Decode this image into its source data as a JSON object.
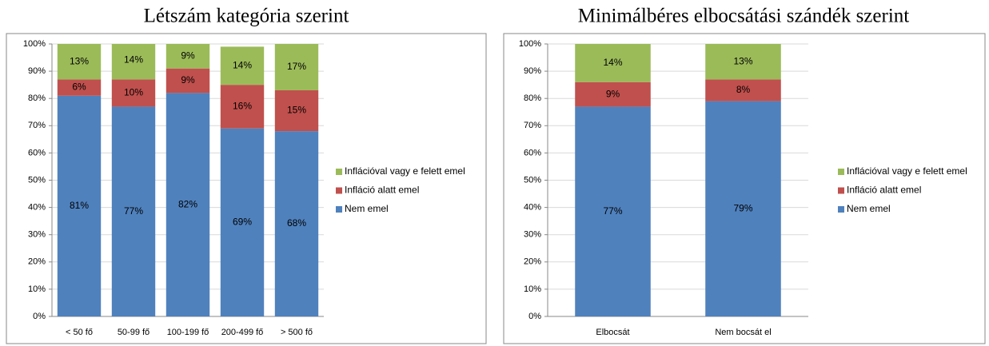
{
  "chart_data": [
    {
      "type": "bar",
      "stacked": true,
      "title": "Létszám kategória szerint",
      "categories": [
        "< 50 fő",
        "50-99 fő",
        "100-199 fő",
        "200-499 fő",
        "> 500 fő"
      ],
      "series": [
        {
          "name": "Nem emel",
          "color": "#4f81bd",
          "values": [
            81,
            77,
            82,
            69,
            68
          ],
          "value_labels": [
            "81%",
            "77%",
            "82%",
            "69%",
            "68%"
          ]
        },
        {
          "name": "Infláció alatt emel",
          "color": "#c0504d",
          "values": [
            6,
            10,
            9,
            16,
            15
          ],
          "value_labels": [
            "6%",
            "10%",
            "9%",
            "16%",
            "15%"
          ]
        },
        {
          "name": "Inflációval vagy e felett emel",
          "color": "#9bbb59",
          "values": [
            13,
            14,
            9,
            14,
            17
          ],
          "value_labels": [
            "13%",
            "14%",
            "9%",
            "14%",
            "17%"
          ]
        }
      ],
      "ylim": [
        0,
        100
      ],
      "yticks": [
        {
          "value": 0,
          "label": "0%"
        },
        {
          "value": 10,
          "label": "10%"
        },
        {
          "value": 20,
          "label": "20%"
        },
        {
          "value": 30,
          "label": "30%"
        },
        {
          "value": 40,
          "label": "40%"
        },
        {
          "value": 50,
          "label": "50%"
        },
        {
          "value": 60,
          "label": "60%"
        },
        {
          "value": 70,
          "label": "70%"
        },
        {
          "value": 80,
          "label": "80%"
        },
        {
          "value": 90,
          "label": "90%"
        },
        {
          "value": 100,
          "label": "100%"
        }
      ],
      "legend": "right"
    },
    {
      "type": "bar",
      "stacked": true,
      "title": "Minimálbéres elbocsátási szándék szerint",
      "categories": [
        "Elbocsát",
        "Nem bocsát el"
      ],
      "series": [
        {
          "name": "Nem emel",
          "color": "#4f81bd",
          "values": [
            77,
            79
          ],
          "value_labels": [
            "77%",
            "79%"
          ]
        },
        {
          "name": "Infláció alatt emel",
          "color": "#c0504d",
          "values": [
            9,
            8
          ],
          "value_labels": [
            "9%",
            "8%"
          ]
        },
        {
          "name": "Inflációval vagy e felett emel",
          "color": "#9bbb59",
          "values": [
            14,
            13
          ],
          "value_labels": [
            "14%",
            "13%"
          ]
        }
      ],
      "ylim": [
        0,
        100
      ],
      "yticks": [
        {
          "value": 0,
          "label": "0%"
        },
        {
          "value": 10,
          "label": "10%"
        },
        {
          "value": 20,
          "label": "20%"
        },
        {
          "value": 30,
          "label": "30%"
        },
        {
          "value": 40,
          "label": "40%"
        },
        {
          "value": 50,
          "label": "50%"
        },
        {
          "value": 60,
          "label": "60%"
        },
        {
          "value": 70,
          "label": "70%"
        },
        {
          "value": 80,
          "label": "80%"
        },
        {
          "value": 90,
          "label": "90%"
        },
        {
          "value": 100,
          "label": "100%"
        }
      ],
      "legend": "right"
    }
  ]
}
